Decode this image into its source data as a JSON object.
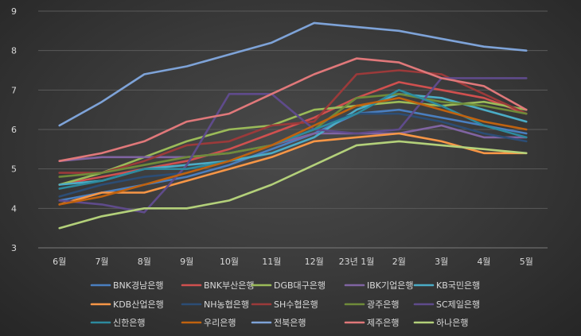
{
  "chart_data": {
    "type": "line",
    "title": "",
    "xlabel": "",
    "ylabel": "",
    "categories": [
      "6월",
      "7월",
      "8월",
      "9월",
      "10월",
      "11월",
      "12월",
      "23년 1월",
      "2월",
      "3월",
      "4월",
      "5월"
    ],
    "ylim": [
      3,
      9
    ],
    "yticks": [
      3,
      4,
      5,
      6,
      7,
      8,
      9
    ],
    "grid": true,
    "legend_position": "bottom",
    "series": [
      {
        "name": "BNK경남은행",
        "color": "#4a7fc0",
        "values": [
          4.2,
          4.4,
          4.6,
          4.8,
          5.1,
          5.5,
          5.9,
          6.4,
          6.5,
          6.3,
          6.1,
          5.9
        ]
      },
      {
        "name": "BNK부산은행",
        "color": "#d0504f",
        "values": [
          4.6,
          4.8,
          5.0,
          5.2,
          5.5,
          5.9,
          6.3,
          6.8,
          7.2,
          7.0,
          6.8,
          6.4
        ]
      },
      {
        "name": "DGB대구은행",
        "color": "#9bbb59",
        "values": [
          4.6,
          4.9,
          5.3,
          5.7,
          6.0,
          6.1,
          6.5,
          6.6,
          6.7,
          6.6,
          6.7,
          6.5
        ]
      },
      {
        "name": "IBK기업은행",
        "color": "#8064a2",
        "values": [
          5.2,
          5.3,
          5.3,
          5.3,
          5.4,
          5.6,
          5.9,
          5.9,
          5.9,
          6.1,
          5.8,
          5.8
        ]
      },
      {
        "name": "KB국민은행",
        "color": "#4bacc6",
        "values": [
          4.6,
          4.7,
          5.0,
          5.1,
          5.2,
          5.4,
          5.8,
          6.5,
          6.9,
          6.8,
          6.5,
          6.2
        ]
      },
      {
        "name": "KDB산업은행",
        "color": "#f79646",
        "values": [
          4.1,
          4.4,
          4.4,
          4.7,
          5.0,
          5.3,
          5.7,
          5.8,
          5.9,
          5.7,
          5.4,
          5.4
        ]
      },
      {
        "name": "NH농협은행",
        "color": "#2c4d75",
        "values": [
          4.3,
          4.6,
          4.8,
          4.9,
          5.2,
          5.6,
          6.1,
          6.4,
          6.4,
          6.2,
          5.9,
          5.7
        ]
      },
      {
        "name": "SH수협은행",
        "color": "#9b3a3a",
        "values": [
          4.9,
          4.9,
          5.2,
          5.6,
          5.7,
          6.1,
          6.2,
          7.4,
          7.5,
          7.4,
          6.9,
          6.4
        ]
      },
      {
        "name": "광주은행",
        "color": "#6f8b3a",
        "values": [
          4.8,
          4.9,
          5.1,
          5.3,
          5.4,
          5.6,
          6.0,
          6.8,
          6.9,
          6.7,
          6.6,
          6.4
        ]
      },
      {
        "name": "SC제일은행",
        "color": "#5f4b8b",
        "values": [
          4.2,
          4.1,
          3.9,
          5.1,
          6.9,
          6.9,
          6.0,
          5.9,
          6.0,
          7.3,
          7.3,
          7.3
        ]
      },
      {
        "name": "신한은행",
        "color": "#2d8a9e",
        "values": [
          4.5,
          4.7,
          5.0,
          5.0,
          5.2,
          5.6,
          6.0,
          6.4,
          7.0,
          6.6,
          6.1,
          5.8
        ]
      },
      {
        "name": "우리은행",
        "color": "#c0620f",
        "values": [
          4.1,
          4.3,
          4.6,
          4.9,
          5.2,
          5.6,
          6.1,
          6.6,
          6.8,
          6.5,
          6.2,
          6.0
        ]
      },
      {
        "name": "전북은행",
        "color": "#7ea3d8",
        "values": [
          6.1,
          6.7,
          7.4,
          7.6,
          7.9,
          8.2,
          8.7,
          8.6,
          8.5,
          8.3,
          8.1,
          8.0
        ]
      },
      {
        "name": "제주은행",
        "color": "#e0787a",
        "values": [
          5.2,
          5.4,
          5.7,
          6.2,
          6.4,
          6.9,
          7.4,
          7.8,
          7.7,
          7.3,
          7.1,
          6.5
        ]
      },
      {
        "name": "하나은행",
        "color": "#b3d07a",
        "values": [
          3.5,
          3.8,
          4.0,
          4.0,
          4.2,
          4.6,
          5.1,
          5.6,
          5.7,
          5.6,
          5.5,
          5.4
        ]
      }
    ]
  }
}
